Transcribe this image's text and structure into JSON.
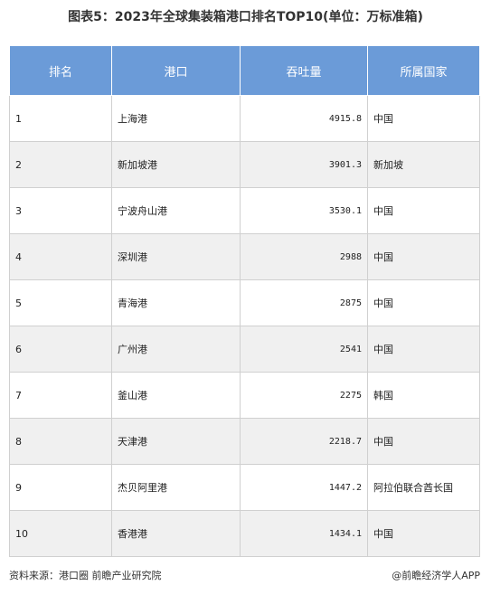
{
  "title": "图表5：2023年全球集装箱港口排名TOP10(单位：万标准箱)",
  "table": {
    "header": [
      "排名",
      "港口",
      "吞吐量",
      "所属国家"
    ],
    "rows": [
      [
        "1",
        "上海港",
        "4915.8",
        "中国"
      ],
      [
        "2",
        "新加坡港",
        "3901.3",
        "新加坡"
      ],
      [
        "3",
        "宁波舟山港",
        "3530.1",
        "中国"
      ],
      [
        "4",
        "深圳港",
        "2988",
        "中国"
      ],
      [
        "5",
        "青海港",
        "2875",
        "中国"
      ],
      [
        "6",
        "广州港",
        "2541",
        "中国"
      ],
      [
        "7",
        "釜山港",
        "2275",
        "韩国"
      ],
      [
        "8",
        "天津港",
        "2218.7",
        "中国"
      ],
      [
        "9",
        "杰贝阿里港",
        "1447.2",
        "阿拉伯联合酋长国"
      ],
      [
        "10",
        "香港港",
        "1434.1",
        "中国"
      ]
    ]
  },
  "footer": {
    "source": "资料来源：港口圈 前瞻产业研究院",
    "brand": "@前瞻经济学人APP"
  }
}
